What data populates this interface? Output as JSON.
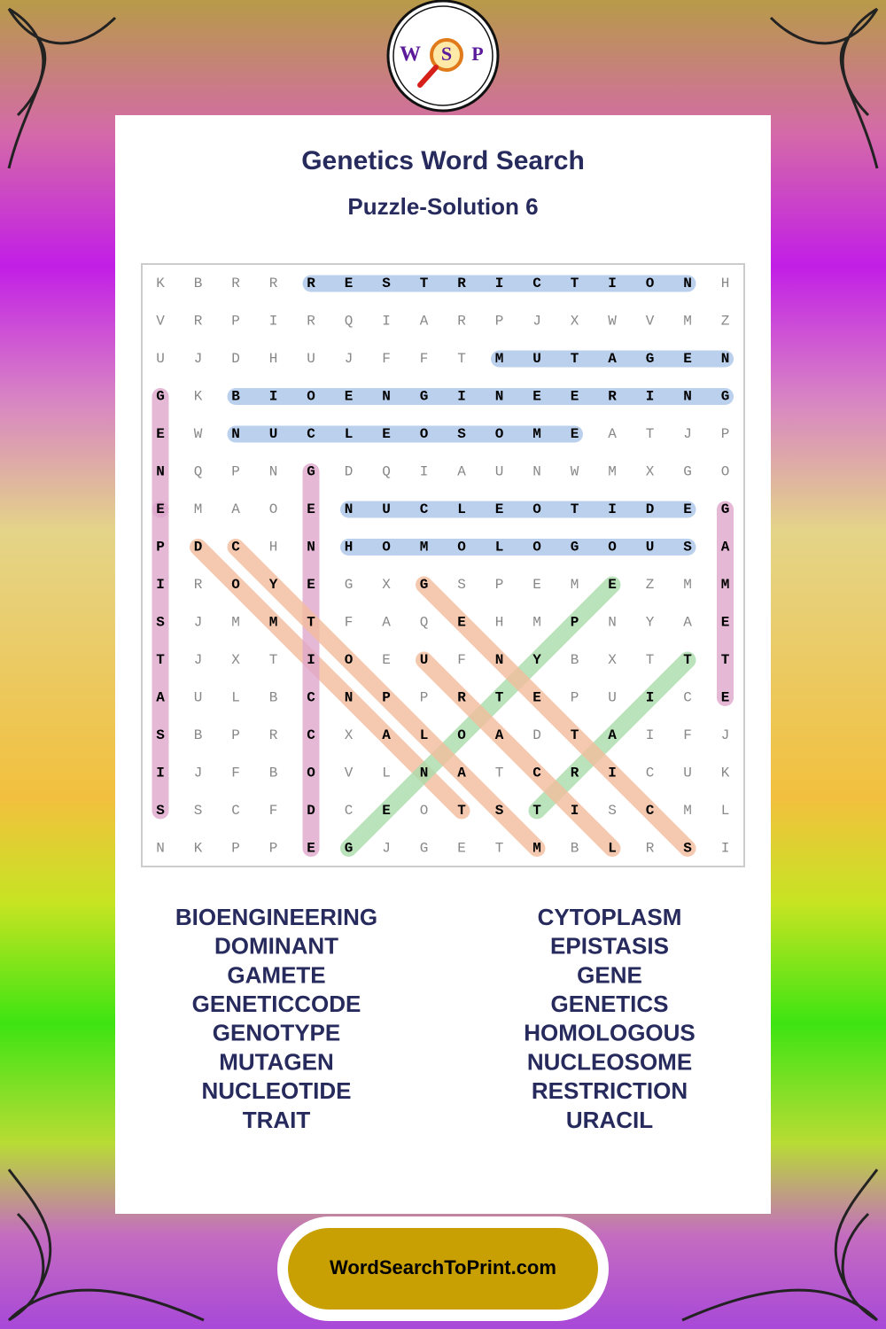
{
  "logo": {
    "letters": [
      "W",
      "S",
      "P"
    ]
  },
  "title": "Genetics Word Search",
  "subtitle": "Puzzle-Solution 6",
  "puzzle": {
    "rows": [
      "KBRRRESTRICTIONH",
      "VRPIRQIARPJXWVMZ",
      "UJDHUJFFTMUTAGEN",
      "GKBIOENGINEERING",
      "EWNUCLEOSOMEATJP",
      "NQPNGDQIAUNWMXGO",
      "EMAOENUCLEOTIDEG",
      "PDCHNHOMOLOGOUSA",
      "IROYEGXGSPEMEZMM",
      "SJMMTFAQEHMPNYAE",
      "TJXTIOEUFNYBXTTT",
      "AULBCNPPRTEPUICE",
      "SBPRCXALOADTAIFJ",
      "IJFBOVLNATCRICUK",
      "SSCFDCEOTSTISCML",
      "NKPPEGJGETMBLRSI"
    ]
  },
  "words": {
    "left": [
      "BIOENGINEERING",
      "DOMINANT",
      "GAMETE",
      "GENETICCODE",
      "GENOTYPE",
      "MUTAGEN",
      "NUCLEOTIDE",
      "TRAIT"
    ],
    "right": [
      "CYTOPLASM",
      "EPISTASIS",
      "GENE",
      "GENETICS",
      "HOMOLOGOUS",
      "NUCLEOSOME",
      "RESTRICTION",
      "URACIL"
    ]
  },
  "footer": {
    "site": "WordSearchToPrint.com"
  }
}
